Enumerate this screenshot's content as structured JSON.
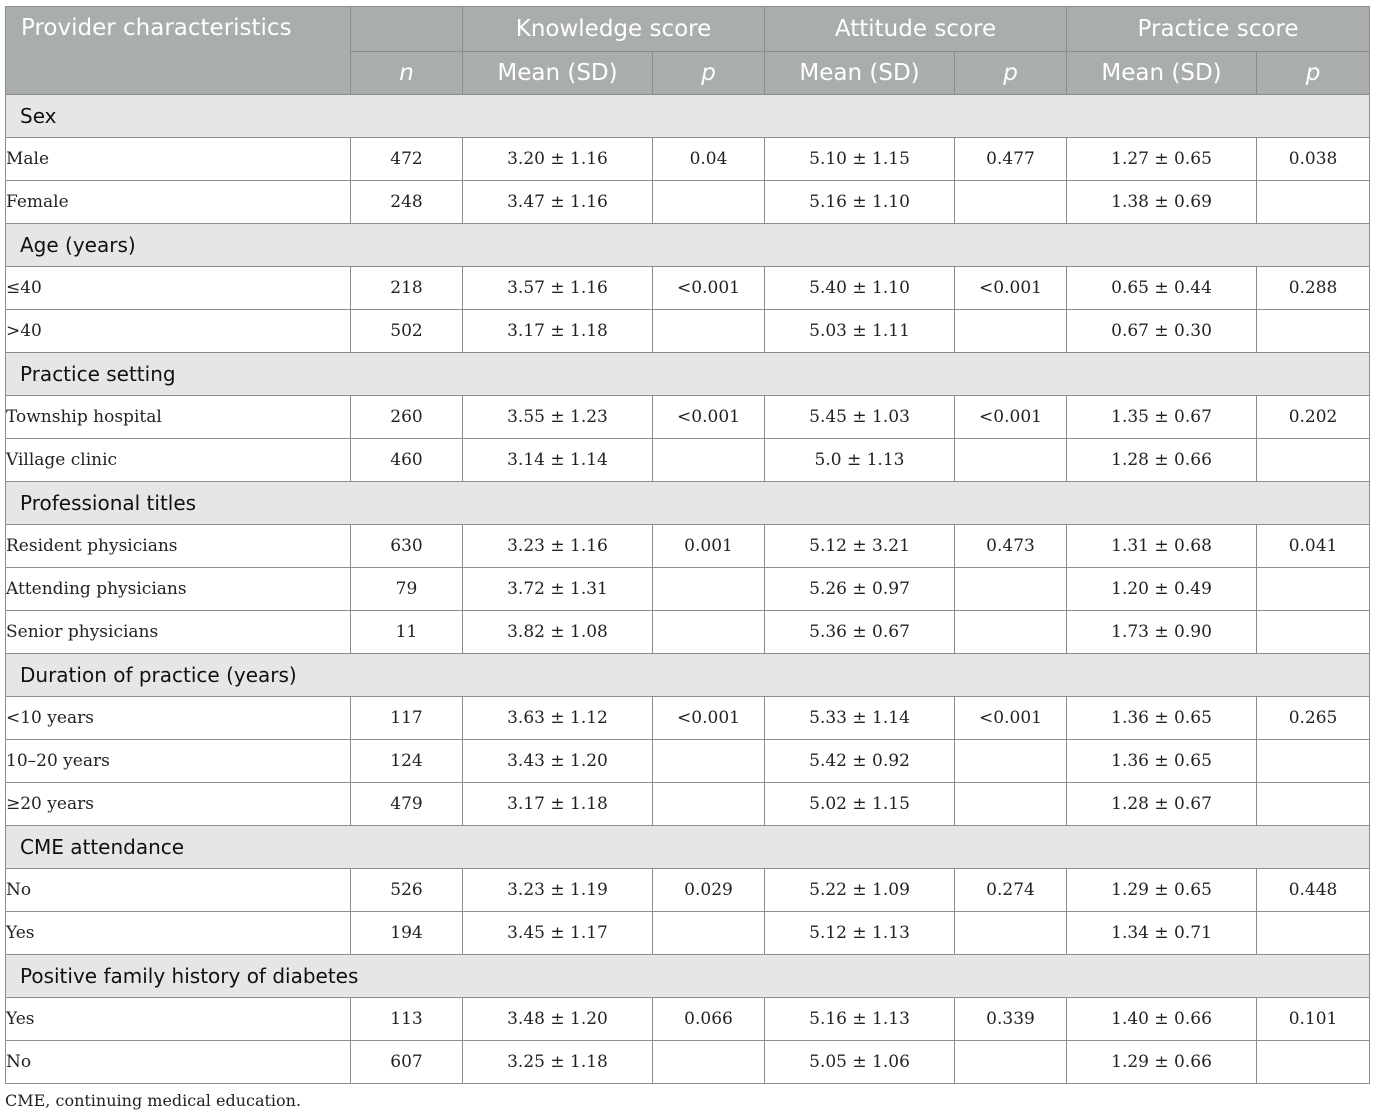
{
  "header": {
    "col_char": "Provider characteristics",
    "col_n": "n",
    "groups": [
      "Knowledge score",
      "Attitude score",
      "Practice score"
    ],
    "mean_label": "Mean (SD)",
    "p_label": "p"
  },
  "sections": [
    {
      "title": "Sex",
      "rows": [
        {
          "label": "Male",
          "n": "472",
          "k_mean": "3.20 ± 1.16",
          "k_p": "0.04",
          "a_mean": "5.10 ± 1.15",
          "a_p": "0.477",
          "p_mean": "1.27 ± 0.65",
          "p_p": "0.038"
        },
        {
          "label": "Female",
          "n": "248",
          "k_mean": "3.47 ± 1.16",
          "k_p": "",
          "a_mean": "5.16 ± 1.10",
          "a_p": "",
          "p_mean": "1.38 ± 0.69",
          "p_p": ""
        }
      ]
    },
    {
      "title": "Age (years)",
      "rows": [
        {
          "label": "≤40",
          "n": "218",
          "k_mean": "3.57 ± 1.16",
          "k_p": "<0.001",
          "a_mean": "5.40 ± 1.10",
          "a_p": "<0.001",
          "p_mean": "0.65 ± 0.44",
          "p_p": "0.288"
        },
        {
          "label": ">40",
          "n": "502",
          "k_mean": "3.17 ± 1.18",
          "k_p": "",
          "a_mean": "5.03 ± 1.11",
          "a_p": "",
          "p_mean": "0.67 ± 0.30",
          "p_p": ""
        }
      ]
    },
    {
      "title": "Practice setting",
      "rows": [
        {
          "label": "Township hospital",
          "n": "260",
          "k_mean": "3.55 ± 1.23",
          "k_p": "<0.001",
          "a_mean": "5.45 ± 1.03",
          "a_p": "<0.001",
          "p_mean": "1.35 ± 0.67",
          "p_p": "0.202"
        },
        {
          "label": "Village clinic",
          "n": "460",
          "k_mean": "3.14 ± 1.14",
          "k_p": "",
          "a_mean": "5.0 ± 1.13",
          "a_p": "",
          "p_mean": "1.28 ± 0.66",
          "p_p": ""
        }
      ]
    },
    {
      "title": "Professional titles",
      "rows": [
        {
          "label": "Resident physicians",
          "n": "630",
          "k_mean": "3.23 ± 1.16",
          "k_p": "0.001",
          "a_mean": "5.12 ± 3.21",
          "a_p": "0.473",
          "p_mean": "1.31 ± 0.68",
          "p_p": "0.041"
        },
        {
          "label": "Attending physicians",
          "n": "79",
          "k_mean": "3.72 ± 1.31",
          "k_p": "",
          "a_mean": "5.26 ± 0.97",
          "a_p": "",
          "p_mean": "1.20 ± 0.49",
          "p_p": ""
        },
        {
          "label": "Senior physicians",
          "n": "11",
          "k_mean": "3.82 ± 1.08",
          "k_p": "",
          "a_mean": "5.36 ± 0.67",
          "a_p": "",
          "p_mean": "1.73 ± 0.90",
          "p_p": ""
        }
      ]
    },
    {
      "title": "Duration of practice (years)",
      "rows": [
        {
          "label": "<10 years",
          "n": "117",
          "k_mean": "3.63 ± 1.12",
          "k_p": "<0.001",
          "a_mean": "5.33 ± 1.14",
          "a_p": "<0.001",
          "p_mean": "1.36 ± 0.65",
          "p_p": "0.265"
        },
        {
          "label": "10–20 years",
          "n": "124",
          "k_mean": "3.43 ± 1.20",
          "k_p": "",
          "a_mean": "5.42 ± 0.92",
          "a_p": "",
          "p_mean": "1.36 ± 0.65",
          "p_p": ""
        },
        {
          "label": "≥20 years",
          "n": "479",
          "k_mean": "3.17 ± 1.18",
          "k_p": "",
          "a_mean": "5.02 ± 1.15",
          "a_p": "",
          "p_mean": "1.28 ± 0.67",
          "p_p": ""
        }
      ]
    },
    {
      "title": "CME attendance",
      "rows": [
        {
          "label": "No",
          "n": "526",
          "k_mean": "3.23 ± 1.19",
          "k_p": "0.029",
          "a_mean": "5.22 ± 1.09",
          "a_p": "0.274",
          "p_mean": "1.29 ± 0.65",
          "p_p": "0.448"
        },
        {
          "label": "Yes",
          "n": "194",
          "k_mean": "3.45 ± 1.17",
          "k_p": "",
          "a_mean": "5.12 ± 1.13",
          "a_p": "",
          "p_mean": "1.34 ± 0.71",
          "p_p": ""
        }
      ]
    },
    {
      "title": "Positive family history of diabetes",
      "rows": [
        {
          "label": "Yes",
          "n": "113",
          "k_mean": "3.48 ± 1.20",
          "k_p": "0.066",
          "a_mean": "5.16 ± 1.13",
          "a_p": "0.339",
          "p_mean": "1.40 ± 0.66",
          "p_p": "0.101"
        },
        {
          "label": "No",
          "n": "607",
          "k_mean": "3.25 ± 1.18",
          "k_p": "",
          "a_mean": "5.05 ± 1.06",
          "a_p": "",
          "p_mean": "1.29 ± 0.66",
          "p_p": ""
        }
      ]
    }
  ],
  "footnote": "CME, continuing medical education."
}
